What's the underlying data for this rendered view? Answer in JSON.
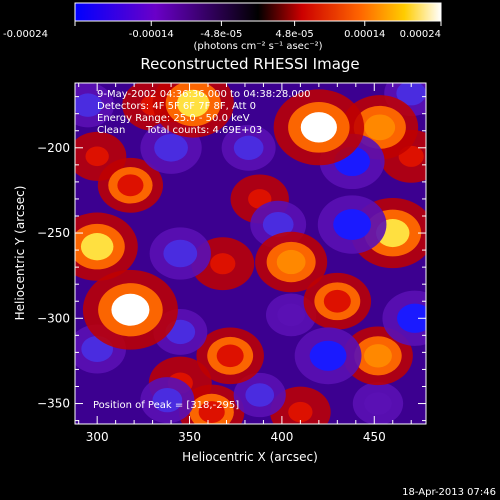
{
  "colorbar": {
    "tick_labels": [
      "-0.00024",
      "-0.00014",
      "-4.8e-05",
      "4.8e-05",
      "0.00014",
      "0.00024"
    ],
    "tick_values": [
      -0.00024,
      -0.00014,
      -4.8e-05,
      4.8e-05,
      0.00014,
      0.00024
    ],
    "range": [
      -0.00024,
      0.00024
    ],
    "unit_label": "(photons cm⁻² s⁻¹ asec⁻²)",
    "colors": [
      "#0000ff",
      "#6a00c8",
      "#000000",
      "#cc0000",
      "#ff6600",
      "#ffcc00",
      "#ffffff"
    ]
  },
  "chart_data": {
    "type": "heatmap",
    "title": "Reconstructed RHESSI Image",
    "xlabel": "Heliocentric X (arcsec)",
    "ylabel": "Heliocentric Y (arcsec)",
    "xlim": [
      288,
      478
    ],
    "ylim": [
      -362,
      -162
    ],
    "x_ticks": [
      300,
      350,
      400,
      450
    ],
    "y_ticks": [
      -200,
      -250,
      -300,
      -350
    ],
    "x_tick_labels": [
      "300",
      "350",
      "400",
      "450"
    ],
    "y_tick_labels": [
      "−200",
      "−250",
      "−300",
      "−350"
    ],
    "peak": [
      318,
      -295
    ],
    "sources": [
      {
        "x": 318,
        "y": -295,
        "value": 0.00024
      },
      {
        "x": 352,
        "y": -174,
        "value": 0.00018
      },
      {
        "x": 420,
        "y": -188,
        "value": 0.00022
      },
      {
        "x": 453,
        "y": -188,
        "value": 0.00016
      },
      {
        "x": 460,
        "y": -250,
        "value": 0.00019
      },
      {
        "x": 300,
        "y": -258,
        "value": 0.00018
      },
      {
        "x": 405,
        "y": -267,
        "value": 0.00014
      },
      {
        "x": 430,
        "y": -290,
        "value": 0.00012
      },
      {
        "x": 318,
        "y": -222,
        "value": 0.00011
      },
      {
        "x": 368,
        "y": -268,
        "value": 0.0001
      },
      {
        "x": 452,
        "y": -322,
        "value": 0.00013
      },
      {
        "x": 372,
        "y": -322,
        "value": 0.00012
      },
      {
        "x": 362,
        "y": -355,
        "value": 0.00011
      },
      {
        "x": 410,
        "y": -355,
        "value": 9e-05
      },
      {
        "x": 330,
        "y": -175,
        "value": 9e-05
      },
      {
        "x": 300,
        "y": -205,
        "value": 8e-05
      },
      {
        "x": 345,
        "y": -338,
        "value": 0.0001
      },
      {
        "x": 388,
        "y": -230,
        "value": 8e-05
      },
      {
        "x": 470,
        "y": -205,
        "value": 0.0001
      },
      {
        "x": 340,
        "y": -200,
        "value": -0.00016
      },
      {
        "x": 382,
        "y": -200,
        "value": -0.00012
      },
      {
        "x": 438,
        "y": -208,
        "value": -0.00018
      },
      {
        "x": 470,
        "y": -168,
        "value": -0.00012
      },
      {
        "x": 438,
        "y": -245,
        "value": -0.0002
      },
      {
        "x": 398,
        "y": -245,
        "value": -0.00013
      },
      {
        "x": 345,
        "y": -262,
        "value": -0.00016
      },
      {
        "x": 300,
        "y": -318,
        "value": -0.00014
      },
      {
        "x": 345,
        "y": -308,
        "value": -0.00012
      },
      {
        "x": 472,
        "y": -300,
        "value": -0.00018
      },
      {
        "x": 425,
        "y": -322,
        "value": -0.00019
      },
      {
        "x": 405,
        "y": -298,
        "value": -0.0001
      },
      {
        "x": 338,
        "y": -348,
        "value": -0.00012
      },
      {
        "x": 388,
        "y": -345,
        "value": -0.00011
      },
      {
        "x": 452,
        "y": -350,
        "value": -0.0001
      },
      {
        "x": 295,
        "y": -175,
        "value": -0.00011
      }
    ]
  },
  "annotations": {
    "time_range": "9-May-2002 04:36:36.000 to 04:38:28.000",
    "detectors": "Detectors: 4F 5F 6F 7F 8F, Att 0",
    "energy_range": "Energy Range: 25.0 - 50.0 keV",
    "clean": "Clean",
    "total_counts": "Total counts: 4.69E+03",
    "peak_position": "Position of Peak = [318,-295]"
  },
  "footer_date": "18-Apr-2013 07:46"
}
